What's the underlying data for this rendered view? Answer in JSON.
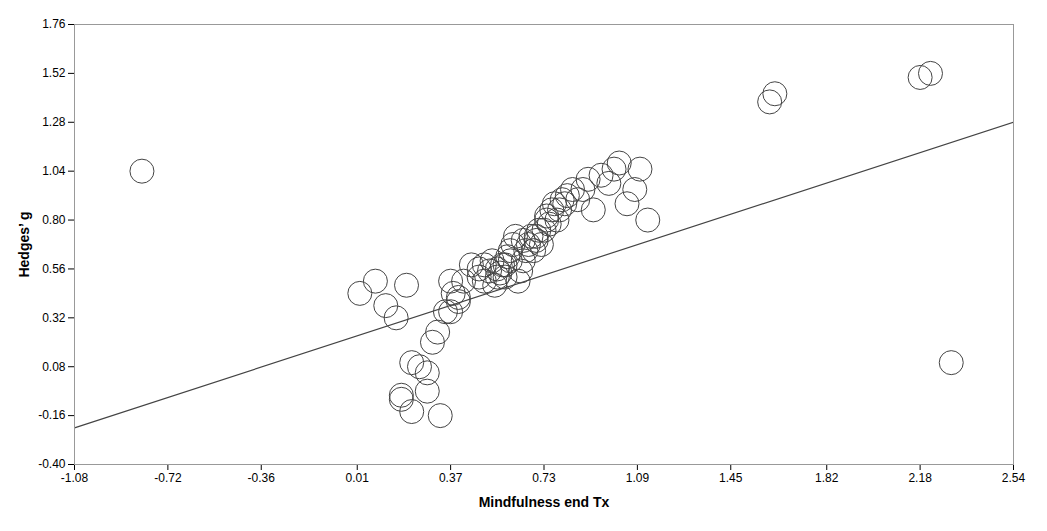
{
  "chart_data": {
    "type": "scatter",
    "xlabel": "Mindfulness end Tx",
    "ylabel": "Hedges’ g",
    "xlim": [
      -1.08,
      2.54
    ],
    "ylim": [
      -0.4,
      1.76
    ],
    "xticks": [
      -1.08,
      -0.72,
      -0.36,
      0.01,
      0.37,
      0.73,
      1.09,
      1.45,
      1.82,
      2.18,
      2.54
    ],
    "yticks": [
      {
        "value": -0.4,
        "label": "-0.40"
      },
      -0.16,
      0.08,
      0.32,
      0.56,
      {
        "value": 0.8,
        "label": "0.80"
      },
      1.04,
      1.28,
      1.52,
      1.76
    ],
    "grid": false,
    "series": [
      {
        "type": "scatter",
        "marker": "circle",
        "color": "#444444",
        "x": [
          -0.82,
          0.02,
          0.08,
          0.12,
          0.16,
          0.2,
          0.18,
          0.22,
          0.25,
          0.28,
          0.3,
          0.32,
          0.35,
          0.37,
          0.4,
          0.18,
          0.22,
          0.28,
          0.33,
          0.37,
          0.38,
          0.4,
          0.42,
          0.45,
          0.48,
          0.48,
          0.5,
          0.5,
          0.52,
          0.53,
          0.54,
          0.55,
          0.55,
          0.56,
          0.57,
          0.58,
          0.58,
          0.59,
          0.6,
          0.6,
          0.61,
          0.62,
          0.63,
          0.64,
          0.65,
          0.65,
          0.66,
          0.67,
          0.68,
          0.69,
          0.7,
          0.7,
          0.71,
          0.72,
          0.73,
          0.74,
          0.74,
          0.75,
          0.76,
          0.77,
          0.78,
          0.79,
          0.8,
          0.81,
          0.82,
          0.84,
          0.86,
          0.88,
          0.9,
          0.92,
          0.95,
          0.98,
          1.0,
          1.02,
          1.05,
          1.08,
          1.1,
          1.13,
          1.6,
          1.62,
          2.18,
          2.22,
          2.3
        ],
        "values": [
          1.04,
          0.44,
          0.5,
          0.38,
          0.32,
          0.48,
          -0.06,
          0.1,
          0.08,
          0.05,
          0.2,
          0.25,
          0.35,
          0.5,
          0.42,
          -0.08,
          -0.14,
          -0.04,
          -0.16,
          0.35,
          0.44,
          0.4,
          0.5,
          0.58,
          0.52,
          0.56,
          0.5,
          0.58,
          0.55,
          0.6,
          0.48,
          0.52,
          0.56,
          0.54,
          0.58,
          0.52,
          0.58,
          0.62,
          0.6,
          0.65,
          0.68,
          0.72,
          0.5,
          0.55,
          0.7,
          0.6,
          0.65,
          0.68,
          0.72,
          0.65,
          0.7,
          0.72,
          0.75,
          0.68,
          0.75,
          0.8,
          0.82,
          0.78,
          0.85,
          0.88,
          0.8,
          0.85,
          0.9,
          0.88,
          0.92,
          0.95,
          0.9,
          0.95,
          1.0,
          0.85,
          1.02,
          0.98,
          1.05,
          1.08,
          0.88,
          0.95,
          1.05,
          0.8,
          1.38,
          1.42,
          1.5,
          1.52,
          0.1
        ]
      },
      {
        "type": "line",
        "color": "#444444",
        "x": [
          -1.08,
          2.54
        ],
        "values": [
          -0.22,
          1.28
        ]
      }
    ]
  }
}
